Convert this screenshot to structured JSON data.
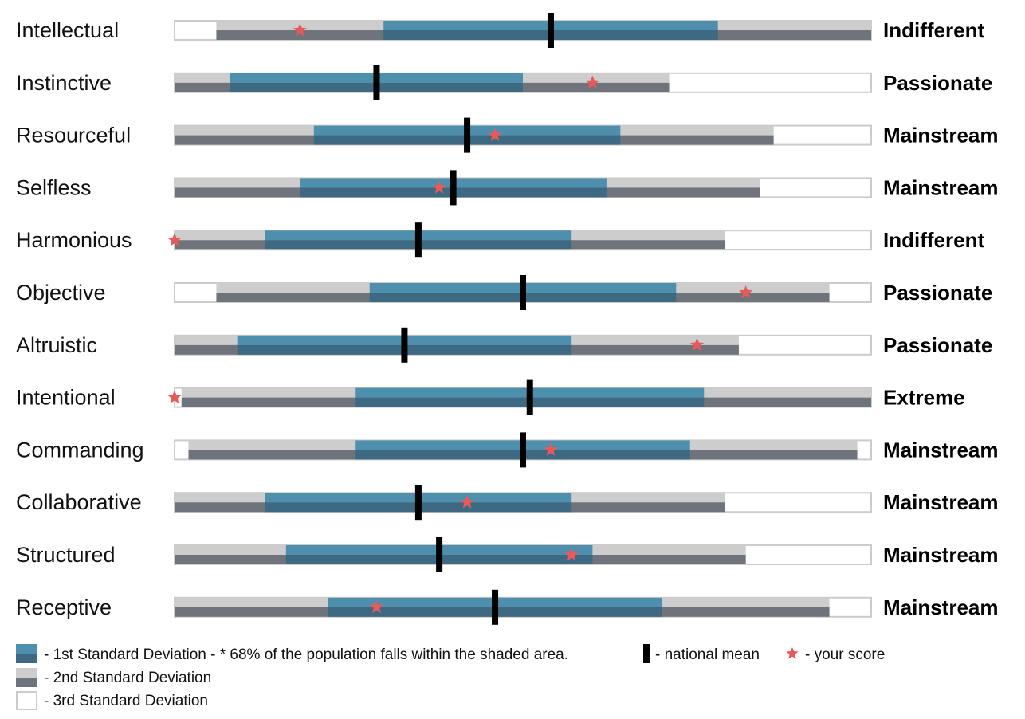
{
  "chart_data": {
    "type": "bullet",
    "scale_min": 0,
    "scale_max": 100,
    "colors": {
      "sd1_top": "#4f8fae",
      "sd1_bottom": "#3d6a82",
      "sd2_top": "#cdcdcd",
      "sd2_bottom": "#6f737b",
      "sd3_fill": "#ffffff",
      "sd3_border": "#cccccc",
      "mean": "#000000",
      "score": "#e85a5a"
    },
    "rows": [
      {
        "trait": "Intellectual",
        "category": "Indifferent",
        "sd3": [
          0,
          100
        ],
        "sd2": [
          6,
          100
        ],
        "sd1": [
          30,
          78
        ],
        "mean": 54,
        "score": 18
      },
      {
        "trait": "Instinctive",
        "category": "Passionate",
        "sd3": [
          0,
          100
        ],
        "sd2": [
          0,
          71
        ],
        "sd1": [
          8,
          50
        ],
        "mean": 29,
        "score": 60
      },
      {
        "trait": "Resourceful",
        "category": "Mainstream",
        "sd3": [
          0,
          100
        ],
        "sd2": [
          0,
          86
        ],
        "sd1": [
          20,
          64
        ],
        "mean": 42,
        "score": 46
      },
      {
        "trait": "Selfless",
        "category": "Mainstream",
        "sd3": [
          0,
          100
        ],
        "sd2": [
          0,
          84
        ],
        "sd1": [
          18,
          62
        ],
        "mean": 40,
        "score": 38
      },
      {
        "trait": "Harmonious",
        "category": "Indifferent",
        "sd3": [
          0,
          100
        ],
        "sd2": [
          0,
          79
        ],
        "sd1": [
          13,
          57
        ],
        "mean": 35,
        "score": 0
      },
      {
        "trait": "Objective",
        "category": "Passionate",
        "sd3": [
          0,
          100
        ],
        "sd2": [
          6,
          94
        ],
        "sd1": [
          28,
          72
        ],
        "mean": 50,
        "score": 82
      },
      {
        "trait": "Altruistic",
        "category": "Passionate",
        "sd3": [
          0,
          100
        ],
        "sd2": [
          0,
          81
        ],
        "sd1": [
          9,
          57
        ],
        "mean": 33,
        "score": 75
      },
      {
        "trait": "Intentional",
        "category": "Extreme",
        "sd3": [
          0,
          100
        ],
        "sd2": [
          1,
          100
        ],
        "sd1": [
          26,
          76
        ],
        "mean": 51,
        "score": 0
      },
      {
        "trait": "Commanding",
        "category": "Mainstream",
        "sd3": [
          0,
          100
        ],
        "sd2": [
          2,
          98
        ],
        "sd1": [
          26,
          74
        ],
        "mean": 50,
        "score": 54
      },
      {
        "trait": "Collaborative",
        "category": "Mainstream",
        "sd3": [
          0,
          100
        ],
        "sd2": [
          0,
          79
        ],
        "sd1": [
          13,
          57
        ],
        "mean": 35,
        "score": 42
      },
      {
        "trait": "Structured",
        "category": "Mainstream",
        "sd3": [
          0,
          100
        ],
        "sd2": [
          0,
          82
        ],
        "sd1": [
          16,
          60
        ],
        "mean": 38,
        "score": 57
      },
      {
        "trait": "Receptive",
        "category": "Mainstream",
        "sd3": [
          0,
          100
        ],
        "sd2": [
          0,
          94
        ],
        "sd1": [
          22,
          70
        ],
        "mean": 46,
        "score": 29
      }
    ]
  },
  "legend": {
    "sd1_text": "- 1st Standard Deviation - * 68% of the population falls within the shaded area.",
    "sd2_text": "- 2nd Standard Deviation",
    "sd3_text": "- 3rd Standard Deviation",
    "mean_text": "- national mean",
    "score_text": "- your score"
  }
}
